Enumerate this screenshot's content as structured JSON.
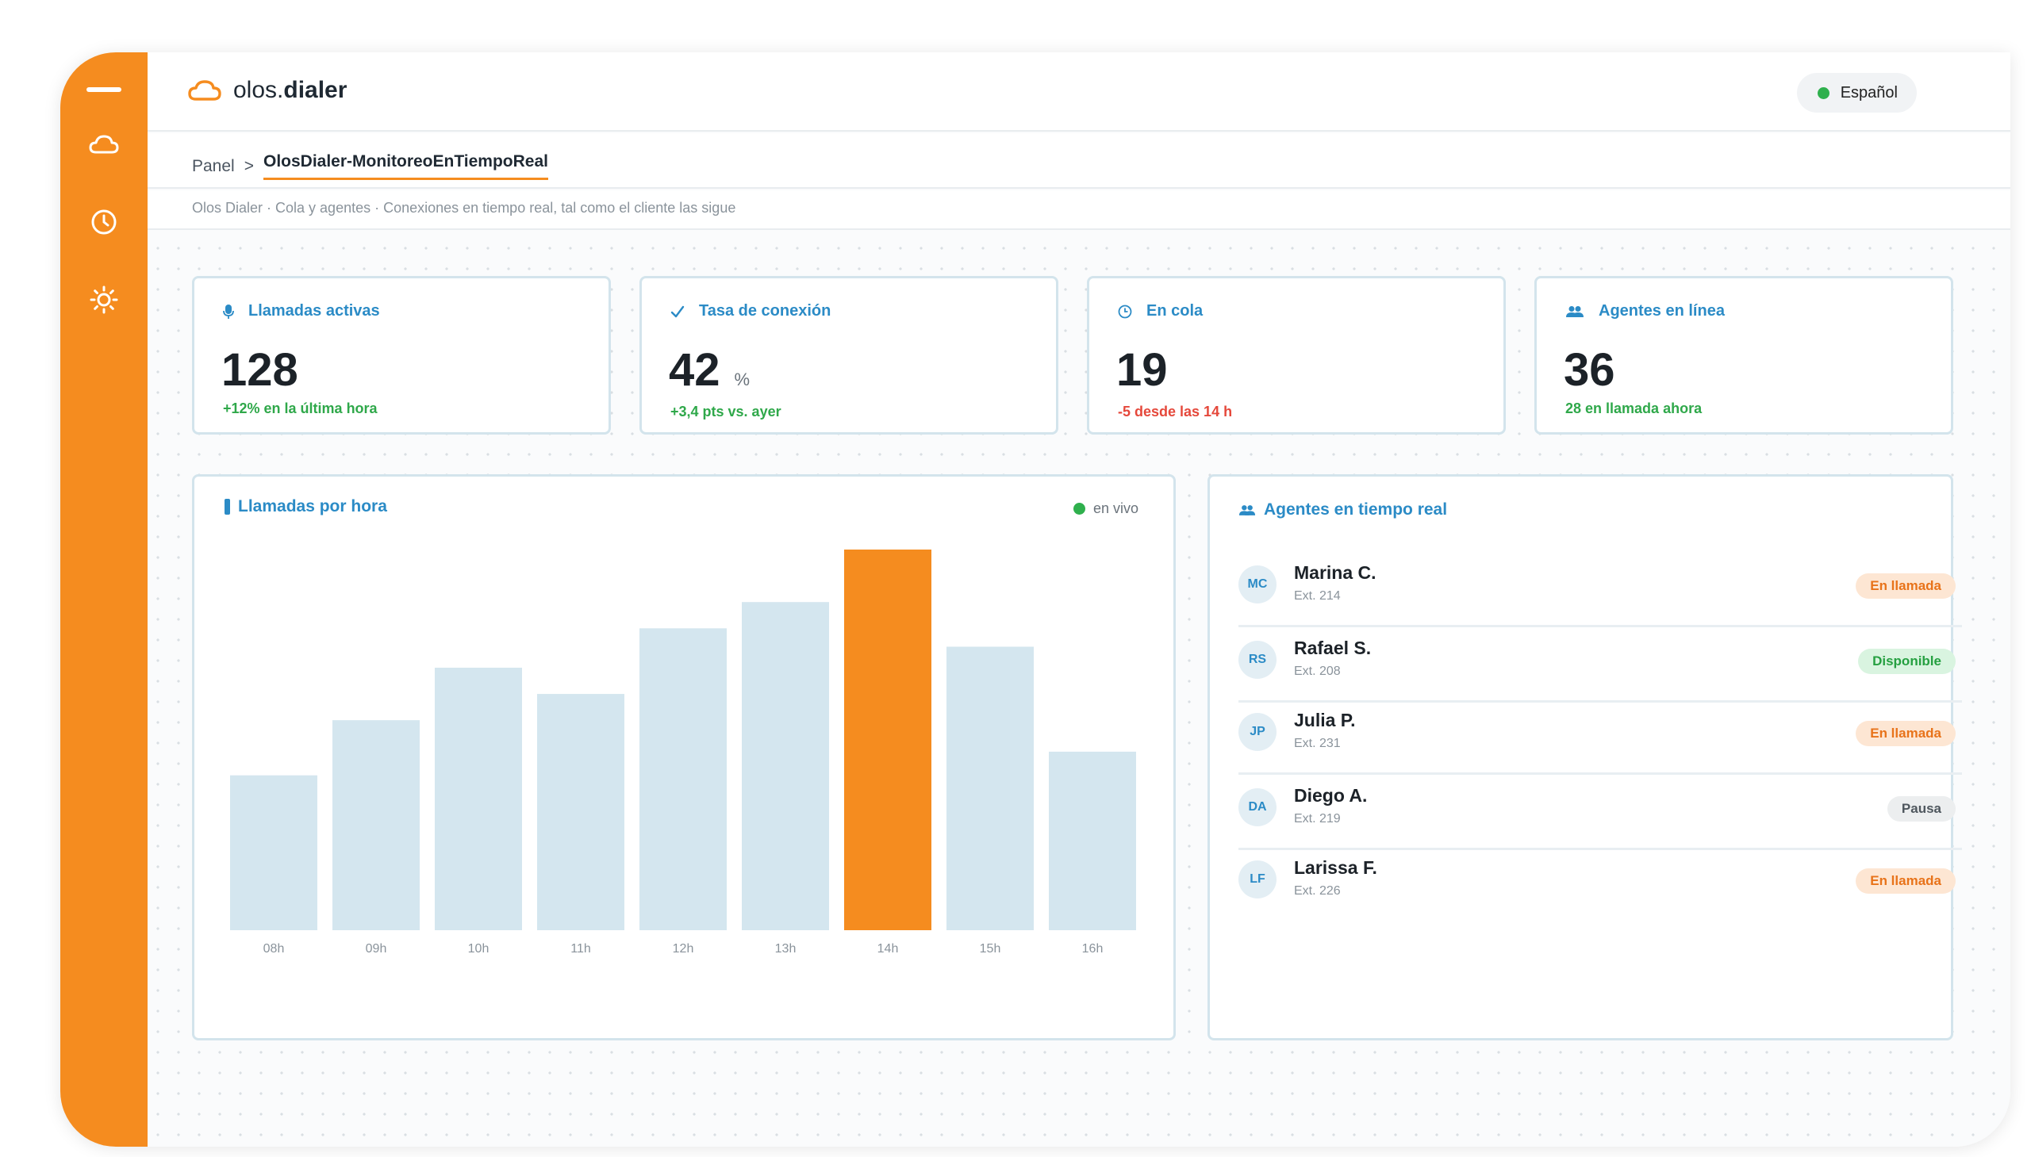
{
  "app": {
    "brand_prefix": "olos.",
    "brand_suffix": "dialer",
    "language": "Español"
  },
  "breadcrumb": {
    "root": "Panel",
    "separator": ">",
    "current": "OlosDialer-MonitoreoEnTiempoReal"
  },
  "subtitle": "Olos Dialer · Cola y agentes · Conexiones en tiempo real, tal como el cliente las sigue",
  "kpis": [
    {
      "icon": "microphone-icon",
      "label": "Llamadas activas",
      "value": "128",
      "unit": "",
      "delta": "+12% en la última hora",
      "delta_color": "#2fa84a"
    },
    {
      "icon": "check-icon",
      "label": "Tasa de conexión",
      "value": "42",
      "unit": "%",
      "delta": "+3,4 pts vs. ayer",
      "delta_color": "#2fa84a"
    },
    {
      "icon": "clock-icon",
      "label": "En cola",
      "value": "19",
      "unit": "",
      "delta": "-5 desde las 14 h",
      "delta_color": "#e5483b"
    },
    {
      "icon": "users-icon",
      "label": "Agentes en línea",
      "value": "36",
      "unit": "",
      "delta": "28 en llamada ahora",
      "delta_color": "#2fa84a"
    }
  ],
  "chart_panel": {
    "title": "Llamadas por hora",
    "live_label": "en vivo"
  },
  "chart_data": {
    "type": "bar",
    "categories": [
      "08h",
      "09h",
      "10h",
      "11h",
      "12h",
      "13h",
      "14h",
      "15h",
      "16h"
    ],
    "values": [
      59,
      80,
      100,
      90,
      115,
      125,
      145,
      108,
      68
    ],
    "highlight_index": 6,
    "ylim": [
      0,
      145
    ],
    "colors": {
      "bar": "#d4e6ef",
      "highlight": "#f58c1f"
    },
    "title": "",
    "xlabel": "",
    "ylabel": ""
  },
  "agents_panel": {
    "title": "Agentes en tiempo real",
    "agents": [
      {
        "initials": "MC",
        "name": "Marina C.",
        "ext": "Ext. 214",
        "status": "En llamada",
        "status_kind": "call"
      },
      {
        "initials": "RS",
        "name": "Rafael S.",
        "ext": "Ext. 208",
        "status": "Disponible",
        "status_kind": "avail"
      },
      {
        "initials": "JP",
        "name": "Julia P.",
        "ext": "Ext. 231",
        "status": "En llamada",
        "status_kind": "call"
      },
      {
        "initials": "DA",
        "name": "Diego A.",
        "ext": "Ext. 219",
        "status": "Pausa",
        "status_kind": "pause"
      },
      {
        "initials": "LF",
        "name": "Larissa F.",
        "ext": "Ext. 226",
        "status": "En llamada",
        "status_kind": "call"
      }
    ]
  },
  "colors": {
    "accent": "#f58c1f",
    "title_blue": "#2b8bc6",
    "positive": "#2fa84a",
    "negative": "#e5483b"
  }
}
